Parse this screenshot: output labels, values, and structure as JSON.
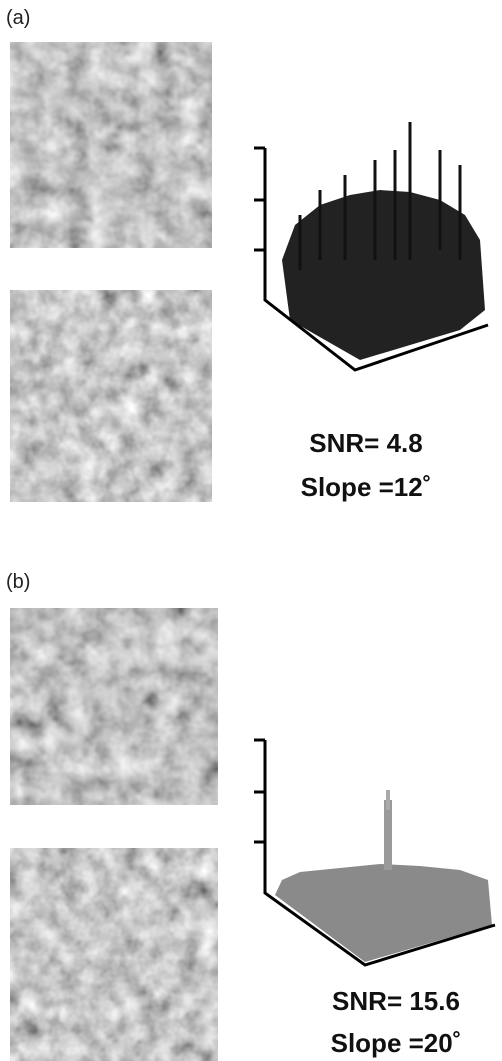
{
  "panels": [
    {
      "label": "(a)",
      "snr": "SNR= 4.8",
      "slope": "Slope =12˚"
    },
    {
      "label": "(b)",
      "snr": "SNR= 15.6",
      "slope": "Slope =20˚"
    }
  ]
}
